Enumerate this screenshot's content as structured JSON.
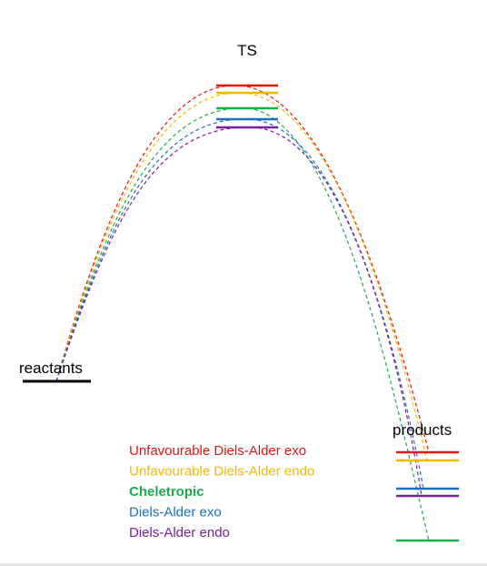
{
  "labels": {
    "ts": "TS",
    "reactants": "reactants",
    "products": "products"
  },
  "colors": {
    "reactant_level": "#000000"
  },
  "legend": [
    {
      "id": "unfav-da-exo",
      "label": "Unfavourable Diels-Alder exo",
      "color": "#e8140f",
      "bold": false
    },
    {
      "id": "unfav-da-endo",
      "label": "Unfavourable Diels-Alder endo",
      "color": "#f5b800",
      "bold": false
    },
    {
      "id": "cheletropic",
      "label": "Cheletropic",
      "color": "#1aad4a",
      "bold": true
    },
    {
      "id": "da-exo",
      "label": "Diels-Alder exo",
      "color": "#1d6fc0",
      "bold": false
    },
    {
      "id": "da-endo",
      "label": "Diels-Alder endo",
      "color": "#7a1fa2",
      "bold": false
    }
  ],
  "ts_order": [
    "unfav-da-exo",
    "unfav-da-endo",
    "cheletropic",
    "da-exo",
    "da-endo"
  ],
  "product_order": [
    "unfav-da-exo",
    "unfav-da-endo",
    "da-exo",
    "da-endo",
    "cheletropic"
  ]
}
